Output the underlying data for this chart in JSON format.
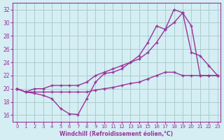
{
  "xlabel": "Windchill (Refroidissement éolien,°C)",
  "ylabel": "",
  "xlim": [
    0,
    23
  ],
  "ylim": [
    15,
    33
  ],
  "yticks": [
    16,
    18,
    20,
    22,
    24,
    26,
    28,
    30,
    32
  ],
  "xticks": [
    0,
    1,
    2,
    3,
    4,
    5,
    6,
    7,
    8,
    9,
    10,
    11,
    12,
    13,
    14,
    15,
    16,
    17,
    18,
    19,
    20,
    21,
    22,
    23
  ],
  "bg_color": "#d4eef4",
  "grid_color": "#aacccc",
  "line_color": "#993399",
  "line1_x": [
    0,
    1,
    2,
    3,
    4,
    5,
    6,
    7,
    8,
    9,
    10,
    11,
    12,
    13,
    14,
    15,
    16,
    17,
    18,
    19,
    20,
    21,
    22,
    23
  ],
  "line1_y": [
    20,
    19.5,
    19.3,
    19,
    18.5,
    17,
    16.2,
    16.1,
    18.5,
    21,
    22.3,
    22.5,
    23,
    24,
    25,
    27,
    29.5,
    29,
    32,
    31.5,
    25.5,
    25,
    23.5,
    22
  ],
  "line2_x": [
    0,
    1,
    2,
    3,
    4,
    5,
    6,
    7,
    8,
    9,
    10,
    11,
    12,
    13,
    14,
    15,
    16,
    17,
    18,
    19,
    20,
    21,
    22,
    23
  ],
  "line2_y": [
    20,
    19.5,
    20,
    20,
    20.5,
    20.5,
    20.5,
    20.5,
    21,
    22,
    22.5,
    23,
    23.5,
    24,
    24.5,
    25.5,
    27,
    29,
    30,
    31.5,
    29.5,
    22,
    22,
    22
  ],
  "line3_x": [
    0,
    1,
    2,
    3,
    4,
    5,
    6,
    7,
    8,
    9,
    10,
    11,
    12,
    13,
    14,
    15,
    16,
    17,
    18,
    19,
    20,
    21,
    22,
    23
  ],
  "line3_y": [
    20,
    19.5,
    19.5,
    19.5,
    19.5,
    19.5,
    19.5,
    19.5,
    19.5,
    19.8,
    20,
    20.2,
    20.5,
    20.8,
    21,
    21.5,
    22,
    22.5,
    22.5,
    22,
    22,
    22,
    22,
    22
  ]
}
